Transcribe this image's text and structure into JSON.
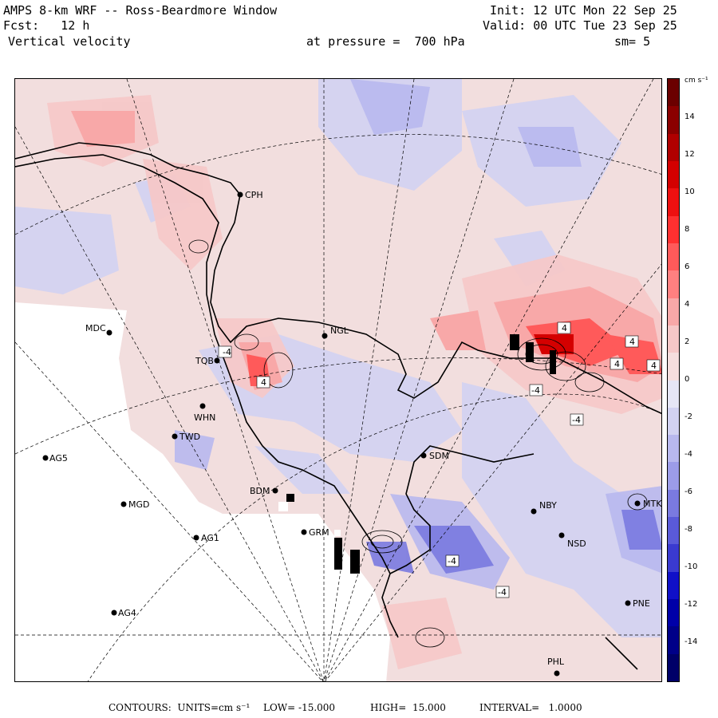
{
  "header": {
    "line1_left": "AMPS 8-km WRF -- Ross-Beardmore Window",
    "line2_left": "Fcst:   12 h",
    "line3_left": "Vertical velocity",
    "line3_mid": "at pressure =  700 hPa",
    "line1_right": "Init: 12 UTC Mon 22 Sep 25",
    "line2_right": "Valid: 00 UTC Tue 23 Sep 25",
    "line3_right": "sm= 5"
  },
  "colorbar": {
    "unit": "cm s⁻¹",
    "ticks": [
      "14",
      "12",
      "10",
      "8",
      "6",
      "4",
      "2",
      "0",
      "-2",
      "-4",
      "-6",
      "-8",
      "-10",
      "-12",
      "-14"
    ],
    "colors": [
      "#6b0000",
      "#8b0000",
      "#b00000",
      "#d40000",
      "#ee1010",
      "#ff3030",
      "#ff5a5a",
      "#ff8080",
      "#f8a8a8",
      "#f6c8c8",
      "#f6dede",
      "#e6e6f6",
      "#d2d2f2",
      "#b8b8ee",
      "#9c9ce8",
      "#7a7ae0",
      "#5a5ad8",
      "#3a3ad0",
      "#1010c8",
      "#0000a8",
      "#000088",
      "#000068"
    ]
  },
  "stations": [
    {
      "code": "CPH"
    },
    {
      "code": "MDC"
    },
    {
      "code": "NGL"
    },
    {
      "code": "TQB"
    },
    {
      "code": "WHN"
    },
    {
      "code": "TWD"
    },
    {
      "code": "AG5"
    },
    {
      "code": "SDM"
    },
    {
      "code": "MGD"
    },
    {
      "code": "BDM"
    },
    {
      "code": "NBY"
    },
    {
      "code": "MTK"
    },
    {
      "code": "AG1"
    },
    {
      "code": "GRM"
    },
    {
      "code": "NSD"
    },
    {
      "code": "AG4"
    },
    {
      "code": "PNE"
    },
    {
      "code": "PHL"
    }
  ],
  "contour_labels": [
    "4",
    "-4",
    "4",
    "4",
    "4",
    "-4",
    "-4",
    "-4",
    "4",
    "-4"
  ],
  "footer": {
    "contours": "CONTOURS:  UNITS=cm s⁻¹",
    "low": "LOW= -15.000",
    "high": "HIGH=  15.000",
    "interval": "INTERVAL=   1.0000"
  },
  "colors": {
    "positive_strong": "#d40000",
    "positive_weak": "#f6c8c8",
    "negative_weak": "#d2d2f2",
    "negative_strong": "#1010c8",
    "coast": "#000000"
  }
}
